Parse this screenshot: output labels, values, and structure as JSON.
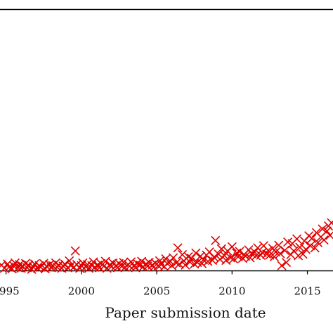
{
  "chart_data": {
    "type": "scatter",
    "title": "",
    "xlabel": "Paper submission date",
    "ylabel": "",
    "xlim": [
      1994.6,
      2016.7
    ],
    "ylim": [
      0,
      100
    ],
    "x_ticks": [
      1995,
      2000,
      2005,
      2010,
      2015
    ],
    "x_tick_labels": [
      "1995",
      "2000",
      "2005",
      "2010",
      "2015"
    ],
    "grid": false,
    "legend": "none",
    "marker": "x",
    "color": "#e00000",
    "series": [
      {
        "points": [
          [
            1994.7,
            2.2
          ],
          [
            1994.9,
            1.0
          ],
          [
            1995.1,
            2.6
          ],
          [
            1995.2,
            1.4
          ],
          [
            1995.4,
            0.8
          ],
          [
            1995.5,
            2.0
          ],
          [
            1995.6,
            3.0
          ],
          [
            1995.8,
            1.2
          ],
          [
            1995.9,
            2.4
          ],
          [
            1996.0,
            1.0
          ],
          [
            1996.1,
            1.8
          ],
          [
            1996.3,
            2.8
          ],
          [
            1996.4,
            1.2
          ],
          [
            1996.5,
            2.2
          ],
          [
            1996.7,
            0.6
          ],
          [
            1996.8,
            1.6
          ],
          [
            1996.9,
            2.6
          ],
          [
            1997.1,
            1.0
          ],
          [
            1997.2,
            2.0
          ],
          [
            1997.3,
            1.4
          ],
          [
            1997.5,
            2.8
          ],
          [
            1997.6,
            0.8
          ],
          [
            1997.7,
            1.8
          ],
          [
            1997.9,
            2.4
          ],
          [
            1998.0,
            1.2
          ],
          [
            1998.1,
            2.0
          ],
          [
            1998.3,
            3.0
          ],
          [
            1998.4,
            1.4
          ],
          [
            1998.5,
            2.2
          ],
          [
            1998.7,
            1.0
          ],
          [
            1998.8,
            1.8
          ],
          [
            1998.9,
            2.6
          ],
          [
            1999.1,
            1.2
          ],
          [
            1999.2,
            3.8
          ],
          [
            1999.3,
            2.0
          ],
          [
            1999.5,
            1.4
          ],
          [
            1999.6,
            7.6
          ],
          [
            1999.7,
            2.4
          ],
          [
            1999.9,
            1.0
          ],
          [
            2000.0,
            2.0
          ],
          [
            2000.1,
            3.0
          ],
          [
            2000.3,
            1.6
          ],
          [
            2000.4,
            2.4
          ],
          [
            2000.5,
            1.0
          ],
          [
            2000.7,
            2.0
          ],
          [
            2000.8,
            3.4
          ],
          [
            2000.9,
            1.4
          ],
          [
            2001.1,
            2.2
          ],
          [
            2001.2,
            1.2
          ],
          [
            2001.3,
            2.8
          ],
          [
            2001.5,
            1.8
          ],
          [
            2001.6,
            3.6
          ],
          [
            2001.7,
            1.0
          ],
          [
            2001.9,
            2.4
          ],
          [
            2002.0,
            1.6
          ],
          [
            2002.1,
            3.0
          ],
          [
            2002.3,
            2.0
          ],
          [
            2002.4,
            1.2
          ],
          [
            2002.5,
            2.8
          ],
          [
            2002.7,
            1.8
          ],
          [
            2002.8,
            3.2
          ],
          [
            2002.9,
            1.4
          ],
          [
            2003.1,
            2.4
          ],
          [
            2003.2,
            1.8
          ],
          [
            2003.3,
            3.4
          ],
          [
            2003.5,
            2.0
          ],
          [
            2003.6,
            1.2
          ],
          [
            2003.7,
            2.8
          ],
          [
            2003.9,
            2.2
          ],
          [
            2004.0,
            3.6
          ],
          [
            2004.1,
            1.6
          ],
          [
            2004.3,
            2.6
          ],
          [
            2004.4,
            1.8
          ],
          [
            2004.5,
            3.2
          ],
          [
            2004.7,
            2.2
          ],
          [
            2004.8,
            1.4
          ],
          [
            2004.9,
            3.0
          ],
          [
            2005.1,
            2.0
          ],
          [
            2005.2,
            3.8
          ],
          [
            2005.3,
            2.4
          ],
          [
            2005.5,
            1.6
          ],
          [
            2005.6,
            4.6
          ],
          [
            2005.7,
            2.8
          ],
          [
            2005.9,
            3.6
          ],
          [
            2006.0,
            2.0
          ],
          [
            2006.1,
            5.0
          ],
          [
            2006.3,
            3.0
          ],
          [
            2006.4,
            8.8
          ],
          [
            2006.5,
            2.6
          ],
          [
            2006.7,
            6.2
          ],
          [
            2006.8,
            3.8
          ],
          [
            2006.9,
            2.2
          ],
          [
            2007.1,
            5.4
          ],
          [
            2007.2,
            3.4
          ],
          [
            2007.3,
            4.8
          ],
          [
            2007.5,
            2.6
          ],
          [
            2007.6,
            6.8
          ],
          [
            2007.7,
            3.2
          ],
          [
            2007.9,
            5.6
          ],
          [
            2008.0,
            2.8
          ],
          [
            2008.1,
            4.2
          ],
          [
            2008.3,
            6.0
          ],
          [
            2008.4,
            3.6
          ],
          [
            2008.5,
            7.2
          ],
          [
            2008.7,
            4.0
          ],
          [
            2008.8,
            5.2
          ],
          [
            2008.9,
            11.6
          ],
          [
            2009.1,
            6.4
          ],
          [
            2009.2,
            4.4
          ],
          [
            2009.3,
            8.4
          ],
          [
            2009.5,
            5.8
          ],
          [
            2009.6,
            4.0
          ],
          [
            2009.7,
            7.6
          ],
          [
            2009.9,
            5.0
          ],
          [
            2010.0,
            9.2
          ],
          [
            2010.1,
            4.6
          ],
          [
            2010.3,
            6.8
          ],
          [
            2010.4,
            5.4
          ],
          [
            2010.5,
            7.4
          ],
          [
            2010.7,
            4.8
          ],
          [
            2010.8,
            6.2
          ],
          [
            2010.9,
            5.6
          ],
          [
            2011.1,
            8.0
          ],
          [
            2011.2,
            5.0
          ],
          [
            2011.3,
            6.6
          ],
          [
            2011.5,
            7.2
          ],
          [
            2011.6,
            5.8
          ],
          [
            2011.7,
            8.8
          ],
          [
            2011.9,
            6.0
          ],
          [
            2012.0,
            7.0
          ],
          [
            2012.1,
            9.6
          ],
          [
            2012.3,
            6.4
          ],
          [
            2012.4,
            7.8
          ],
          [
            2012.5,
            6.0
          ],
          [
            2012.7,
            8.6
          ],
          [
            2012.8,
            5.4
          ],
          [
            2012.9,
            7.2
          ],
          [
            2013.1,
            9.8
          ],
          [
            2013.2,
            6.6
          ],
          [
            2013.3,
            2.0
          ],
          [
            2013.5,
            7.8
          ],
          [
            2013.6,
            3.2
          ],
          [
            2013.7,
            11.0
          ],
          [
            2013.9,
            6.2
          ],
          [
            2014.0,
            10.4
          ],
          [
            2014.1,
            7.6
          ],
          [
            2014.3,
            12.2
          ],
          [
            2014.4,
            5.8
          ],
          [
            2014.5,
            9.0
          ],
          [
            2014.7,
            6.4
          ],
          [
            2014.8,
            11.4
          ],
          [
            2014.9,
            8.2
          ],
          [
            2015.1,
            13.4
          ],
          [
            2015.2,
            9.6
          ],
          [
            2015.3,
            12.4
          ],
          [
            2015.5,
            8.8
          ],
          [
            2015.6,
            14.6
          ],
          [
            2015.7,
            10.8
          ],
          [
            2015.9,
            13.0
          ],
          [
            2016.0,
            16.0
          ],
          [
            2016.1,
            11.8
          ],
          [
            2016.3,
            15.2
          ],
          [
            2016.4,
            17.2
          ],
          [
            2016.5,
            13.6
          ],
          [
            2016.6,
            18.4
          ]
        ]
      }
    ]
  }
}
